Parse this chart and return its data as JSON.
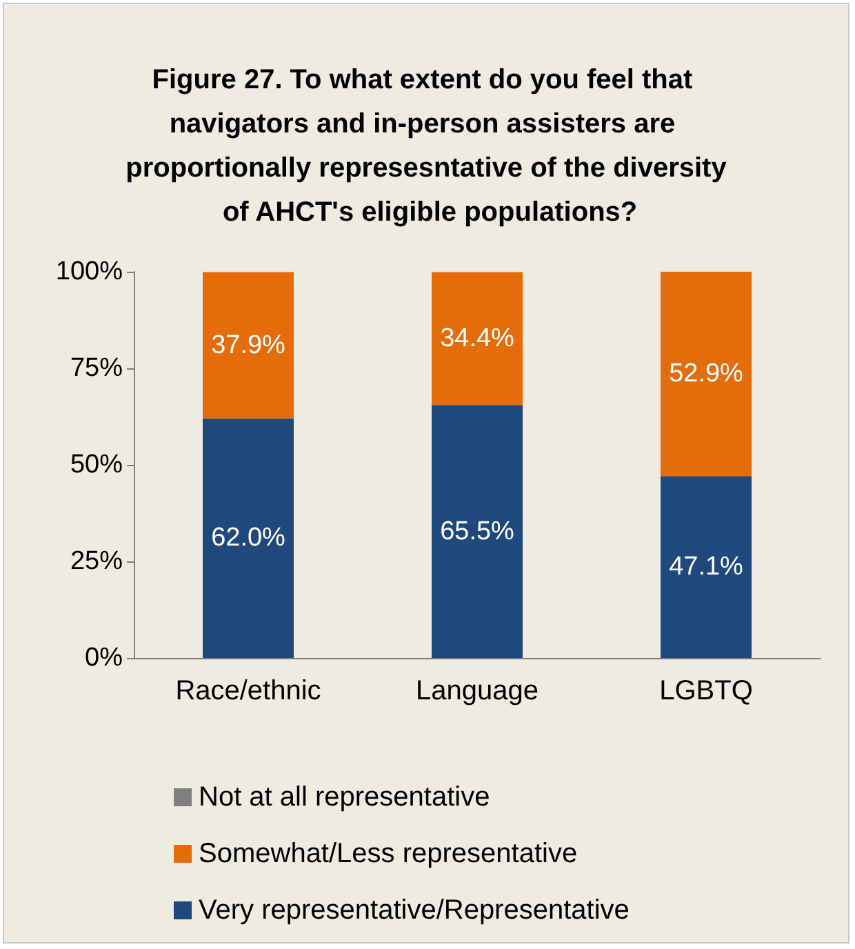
{
  "chart_data": {
    "type": "bar",
    "title": "Figure 27. To what extent do you feel that navigators and in-person assisters are proportionally represesntative of the diversity of AHCT's eligible populations?",
    "categories": [
      "Race/ethnic",
      "Language",
      "LGBTQ"
    ],
    "stacked": true,
    "ylim": [
      0,
      100
    ],
    "yticks": [
      {
        "value": 0,
        "label": "0%"
      },
      {
        "value": 25,
        "label": "25%"
      },
      {
        "value": 50,
        "label": "50%"
      },
      {
        "value": 75,
        "label": "75%"
      },
      {
        "value": 100,
        "label": "100%"
      }
    ],
    "legend": "bottom",
    "series": [
      {
        "name": "Very representative/Representative",
        "color": "#1f497d",
        "values": [
          62.0,
          65.5,
          47.1
        ],
        "value_labels": [
          "62.0%",
          "65.5%",
          "47.1%"
        ]
      },
      {
        "name": "Somewhat/Less representative",
        "color": "#e46c0a",
        "values": [
          37.9,
          34.4,
          52.9
        ],
        "value_labels": [
          "37.9%",
          "34.4%",
          "52.9%"
        ]
      },
      {
        "name": "Not at all representative",
        "color": "#7f7f7f",
        "values": [
          null,
          null,
          null
        ]
      }
    ]
  }
}
